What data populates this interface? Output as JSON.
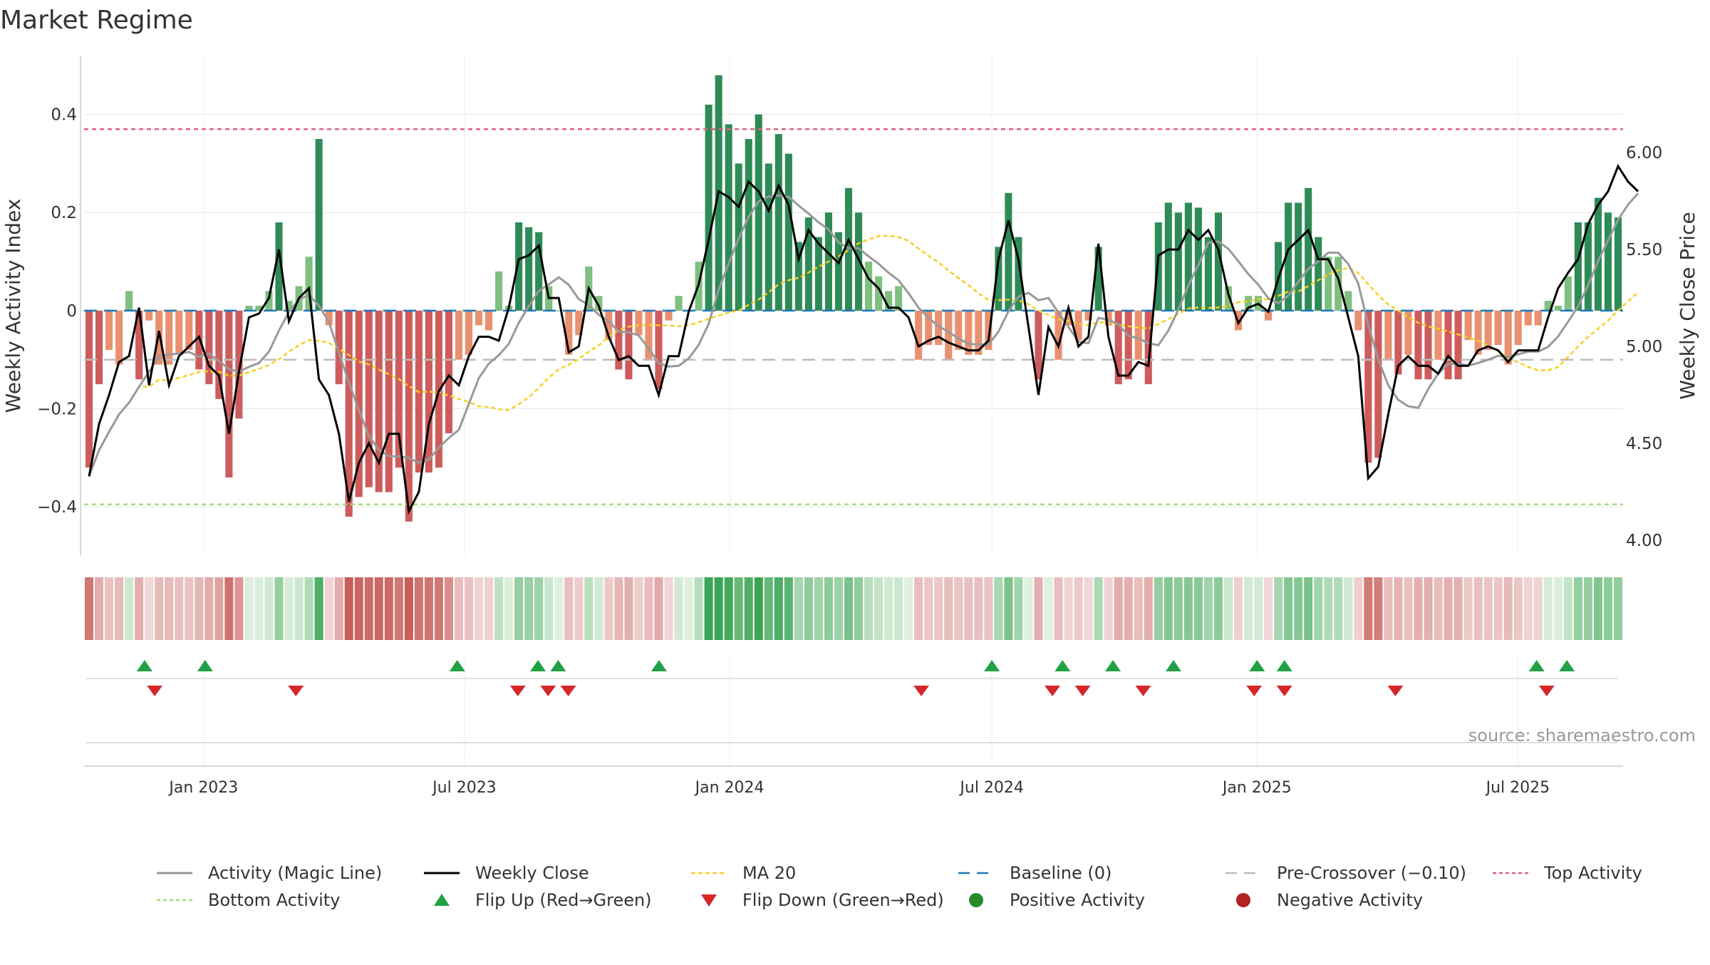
{
  "title": "Market Regime",
  "source": "source: sharemaestro.com",
  "chart_data": {
    "type": "bar",
    "title": "Market Regime",
    "left_axis": {
      "label": "Weekly Activity Index",
      "ylim": [
        -0.5,
        0.52
      ],
      "ticks": [
        0.4,
        0.2,
        0,
        -0.2,
        -0.4
      ],
      "tick_labels": [
        "0.4",
        "0.2",
        "0",
        "−0.2",
        "−0.4"
      ]
    },
    "right_axis": {
      "label": "Weekly Close Price",
      "ylim": [
        3.92,
        6.5
      ],
      "ticks": [
        6.0,
        5.5,
        5.0,
        4.5,
        4.0
      ],
      "tick_labels": [
        "6.00",
        "5.50",
        "5.00",
        "4.50",
        "4.00"
      ]
    },
    "x_axis": {
      "start": "2022-10-10",
      "end": "2025-09-12",
      "ticks": [
        "2023-01-01",
        "2023-07-01",
        "2024-01-01",
        "2024-07-01",
        "2025-01-01",
        "2025-07-01"
      ],
      "tick_labels": [
        "Jan 2023",
        "Jul 2023",
        "Jan 2024",
        "Jul 2024",
        "Jan 2025",
        "Jul 2025"
      ]
    },
    "reference_lines": {
      "top_activity": 0.37,
      "bottom_activity": -0.395,
      "baseline": 0,
      "pre_crossover": -0.1
    },
    "grid": true,
    "legend": "bottom",
    "colors": {
      "strong_pos": "#2e8b57",
      "pos": "#7fbf7f",
      "neg": "#e89070",
      "strong_neg": "#cd5c5c",
      "close": "#000000",
      "activity": "#999999",
      "ma20": "#f5d020",
      "baseline": "#1f77b4",
      "pre": "#bbbbbb",
      "top": "#e0607e",
      "bottom": "#a8d878",
      "flip_up": "#22a045",
      "flip_down": "#d62728"
    },
    "series": [
      {
        "name": "Activity Index (bars)",
        "values": [
          -0.32,
          -0.15,
          -0.08,
          -0.11,
          0.04,
          -0.14,
          -0.02,
          -0.11,
          -0.11,
          -0.09,
          -0.08,
          -0.12,
          -0.15,
          -0.18,
          -0.34,
          -0.22,
          0.01,
          0.01,
          0.04,
          0.18,
          0.02,
          0.05,
          0.11,
          0.35,
          -0.03,
          -0.15,
          -0.42,
          -0.38,
          -0.36,
          -0.37,
          -0.37,
          -0.32,
          -0.43,
          -0.33,
          -0.33,
          -0.32,
          -0.25,
          -0.1,
          -0.09,
          -0.03,
          -0.04,
          0.08,
          0.01,
          0.18,
          0.17,
          0.16,
          0.05,
          0.0,
          -0.09,
          -0.05,
          0.09,
          0.03,
          -0.06,
          -0.12,
          -0.14,
          -0.05,
          -0.1,
          -0.16,
          -0.02,
          0.03,
          0.0,
          0.1,
          0.42,
          0.48,
          0.38,
          0.3,
          0.35,
          0.4,
          0.3,
          0.36,
          0.32,
          0.14,
          0.19,
          0.15,
          0.2,
          0.16,
          0.25,
          0.2,
          0.1,
          0.07,
          0.04,
          0.05,
          0.0,
          -0.1,
          -0.07,
          -0.07,
          -0.1,
          -0.08,
          -0.09,
          -0.09,
          -0.08,
          0.13,
          0.24,
          0.15,
          0.0,
          -0.14,
          0.0,
          -0.1,
          -0.03,
          -0.06,
          -0.02,
          0.13,
          -0.03,
          -0.15,
          -0.14,
          -0.1,
          -0.15,
          0.18,
          0.22,
          0.2,
          0.22,
          0.21,
          0.15,
          0.2,
          0.05,
          -0.04,
          0.03,
          0.03,
          -0.02,
          0.14,
          0.22,
          0.22,
          0.25,
          0.15,
          0.11,
          0.11,
          0.04,
          -0.04,
          -0.31,
          -0.3,
          -0.1,
          -0.13,
          -0.09,
          -0.14,
          -0.14,
          -0.1,
          -0.14,
          -0.14,
          -0.06,
          -0.09,
          -0.08,
          -0.07,
          -0.11,
          -0.07,
          -0.03,
          -0.03,
          0.02,
          0.01,
          0.07,
          0.18,
          0.18,
          0.23,
          0.2,
          0.19
        ]
      },
      {
        "name": "Weekly Close",
        "values": [
          4.33,
          4.6,
          4.75,
          4.92,
          4.95,
          5.2,
          4.8,
          5.08,
          4.8,
          4.95,
          5.0,
          5.05,
          4.9,
          4.85,
          4.55,
          4.87,
          5.15,
          5.17,
          5.25,
          5.5,
          5.13,
          5.25,
          5.3,
          4.83,
          4.75,
          4.55,
          4.2,
          4.4,
          4.5,
          4.4,
          4.55,
          4.55,
          4.15,
          4.25,
          4.6,
          4.77,
          4.85,
          4.8,
          4.95,
          5.05,
          5.05,
          5.03,
          5.2,
          5.45,
          5.47,
          5.52,
          5.25,
          5.25,
          4.97,
          5.0,
          5.3,
          5.21,
          5.05,
          4.93,
          4.95,
          4.9,
          4.9,
          4.75,
          4.95,
          4.95,
          5.18,
          5.32,
          5.55,
          5.8,
          5.77,
          5.72,
          5.85,
          5.8,
          5.7,
          5.83,
          5.73,
          5.45,
          5.6,
          5.53,
          5.48,
          5.43,
          5.55,
          5.45,
          5.35,
          5.3,
          5.2,
          5.2,
          5.15,
          5.0,
          5.03,
          5.05,
          5.02,
          5.0,
          4.98,
          4.98,
          5.03,
          5.45,
          5.65,
          5.45,
          5.1,
          4.75,
          5.1,
          5.0,
          5.2,
          5.0,
          5.05,
          5.53,
          5.05,
          4.85,
          4.85,
          4.92,
          4.9,
          5.47,
          5.5,
          5.5,
          5.6,
          5.55,
          5.6,
          5.5,
          5.27,
          5.12,
          5.2,
          5.22,
          5.18,
          5.35,
          5.5,
          5.55,
          5.6,
          5.45,
          5.45,
          5.35,
          5.15,
          4.95,
          4.32,
          4.38,
          4.65,
          4.9,
          4.95,
          4.9,
          4.9,
          4.86,
          4.95,
          4.9,
          4.9,
          4.98,
          5.0,
          4.98,
          4.92,
          4.98,
          4.98,
          4.98,
          5.15,
          5.3,
          5.38,
          5.45,
          5.63,
          5.73,
          5.8,
          5.93,
          5.85,
          5.8
        ]
      },
      {
        "name": "Flip Up (Red→Green)",
        "dates": [
          "2022-11-21",
          "2023-01-02",
          "2023-06-26",
          "2023-08-21",
          "2023-09-04",
          "2023-11-13",
          "2024-07-01",
          "2024-08-19",
          "2024-09-23",
          "2024-11-04",
          "2025-01-01",
          "2025-01-20",
          "2025-07-14",
          "2025-08-04"
        ]
      },
      {
        "name": "Flip Down (Green→Red)",
        "dates": [
          "2022-11-28",
          "2023-03-06",
          "2023-08-07",
          "2023-08-28",
          "2023-09-11",
          "2024-05-13",
          "2024-08-12",
          "2024-09-02",
          "2024-10-14",
          "2024-12-30",
          "2025-01-20",
          "2025-04-07",
          "2025-07-21"
        ]
      }
    ],
    "legend_entries": [
      "Activity (Magic Line)",
      "Weekly Close",
      "MA 20",
      "Baseline (0)",
      "Pre-Crossover (−0.10)",
      "Top Activity",
      "Bottom Activity",
      "Flip Up (Red→Green)",
      "Flip Down (Green→Red)",
      "Positive Activity",
      "Negative Activity"
    ]
  }
}
